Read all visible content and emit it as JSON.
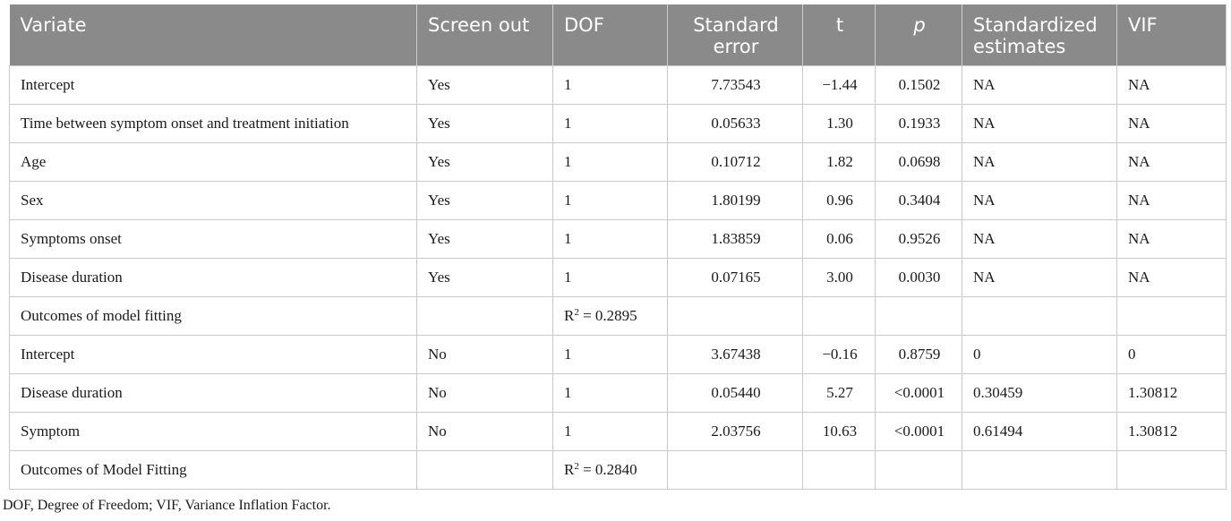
{
  "headers": [
    "Variate",
    "Screen out",
    "DOF",
    "Standard error",
    "t",
    "p",
    "Standardized estimates",
    "VIF"
  ],
  "rows": [
    [
      "Intercept",
      "Yes",
      "1",
      "7.73543",
      "−1.44",
      "0.1502",
      "NA",
      "NA"
    ],
    [
      "Time between symptom onset and treatment initiation",
      "Yes",
      "1",
      "0.05633",
      "1.30",
      "0.1933",
      "NA",
      "NA"
    ],
    [
      "Age",
      "Yes",
      "1",
      "0.10712",
      "1.82",
      "0.0698",
      "NA",
      "NA"
    ],
    [
      "Sex",
      "Yes",
      "1",
      "1.80199",
      "0.96",
      "0.3404",
      "NA",
      "NA"
    ],
    [
      "Symptoms onset",
      "Yes",
      "1",
      "1.83859",
      "0.06",
      "0.9526",
      "NA",
      "NA"
    ],
    [
      "Disease duration",
      "Yes",
      "1",
      "0.07165",
      "3.00",
      "0.0030",
      "NA",
      "NA"
    ],
    [
      "Outcomes of model fitting",
      "",
      "R2 = 0.2895",
      "",
      "",
      "",
      "",
      ""
    ],
    [
      "Intercept",
      "No",
      "1",
      "3.67438",
      "−0.16",
      "0.8759",
      "0",
      "0"
    ],
    [
      "Disease duration",
      "No",
      "1",
      "0.05440",
      "5.27",
      "<0.0001",
      "0.30459",
      "1.30812"
    ],
    [
      "Symptom",
      "No",
      "1",
      "2.03756",
      "10.63",
      "<0.0001",
      "0.61494",
      "1.30812"
    ],
    [
      "Outcomes of Model Fitting",
      "",
      "R2 = 0.2840",
      "",
      "",
      "",
      "",
      ""
    ]
  ],
  "r2_parts": [
    {
      "base": "R",
      "sup": "2",
      "rest": " = 0.2895"
    },
    {
      "base": "R",
      "sup": "2",
      "rest": " = 0.2840"
    }
  ],
  "footnote": "DOF, Degree of Freedom; VIF, Variance Inflation Factor.",
  "colors": {
    "header_bg": "#8a8a8a",
    "header_text": "#ffffff",
    "grid": "#c9c9c9"
  }
}
